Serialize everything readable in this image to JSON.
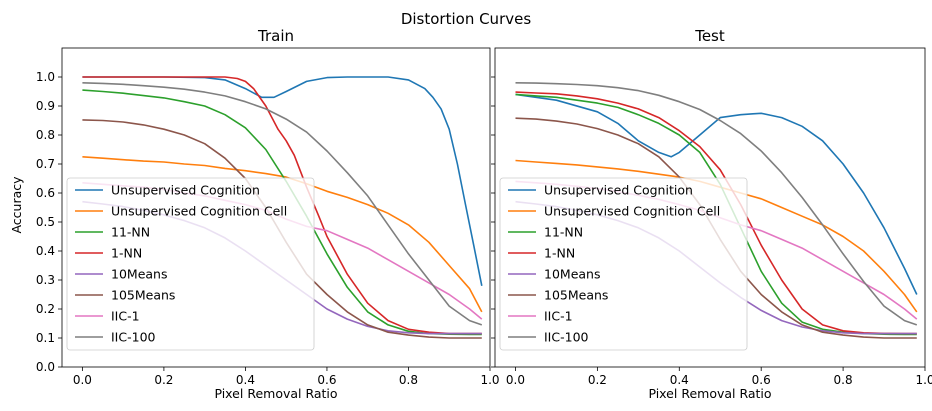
{
  "figure_title": "Distortion Curves",
  "shared": {
    "ylabel": "Accuracy",
    "xlabel": "Pixel Removal Ratio",
    "xlim": [
      -0.05,
      1.0
    ],
    "ylim": [
      0.0,
      1.1
    ],
    "xticks": [
      0.0,
      0.2,
      0.4,
      0.6,
      0.8,
      1.0
    ],
    "yticks": [
      0.0,
      0.1,
      0.2,
      0.3,
      0.4,
      0.5,
      0.6,
      0.7,
      0.8,
      0.9,
      1.0
    ]
  },
  "legend": {
    "placement": "lower-left",
    "entries": [
      {
        "name": "Unsupervised Cognition",
        "color": "#1f77b4"
      },
      {
        "name": "Unsupervised Cognition Cell",
        "color": "#ff7f0e"
      },
      {
        "name": "11-NN",
        "color": "#2ca02c"
      },
      {
        "name": "1-NN",
        "color": "#d62728"
      },
      {
        "name": "10Means",
        "color": "#9467bd"
      },
      {
        "name": "105Means",
        "color": "#8c564b"
      },
      {
        "name": "IIC-1",
        "color": "#e377c2"
      },
      {
        "name": "IIC-100",
        "color": "#7f7f7f"
      }
    ]
  },
  "chart_data": [
    {
      "type": "line",
      "title": "Train",
      "xlabel": "Pixel Removal Ratio",
      "ylabel": "Accuracy",
      "series": [
        {
          "name": "Unsupervised Cognition",
          "color": "#1f77b4",
          "x": [
            0.0,
            0.2,
            0.3,
            0.35,
            0.4,
            0.44,
            0.47,
            0.5,
            0.55,
            0.6,
            0.65,
            0.7,
            0.75,
            0.8,
            0.84,
            0.86,
            0.88,
            0.9,
            0.92,
            0.94,
            0.96,
            0.98
          ],
          "y": [
            1.0,
            1.0,
            0.998,
            0.99,
            0.96,
            0.93,
            0.93,
            0.95,
            0.985,
            0.998,
            1.0,
            1.0,
            1.0,
            0.99,
            0.96,
            0.93,
            0.89,
            0.82,
            0.7,
            0.56,
            0.42,
            0.28
          ]
        },
        {
          "name": "Unsupervised Cognition Cell",
          "color": "#ff7f0e",
          "x": [
            0.0,
            0.05,
            0.1,
            0.15,
            0.2,
            0.25,
            0.3,
            0.35,
            0.4,
            0.45,
            0.5,
            0.55,
            0.6,
            0.65,
            0.7,
            0.75,
            0.8,
            0.85,
            0.9,
            0.95,
            0.98
          ],
          "y": [
            0.725,
            0.72,
            0.715,
            0.71,
            0.707,
            0.7,
            0.695,
            0.685,
            0.677,
            0.667,
            0.655,
            0.632,
            0.606,
            0.585,
            0.56,
            0.53,
            0.49,
            0.43,
            0.35,
            0.27,
            0.19
          ]
        },
        {
          "name": "11-NN",
          "color": "#2ca02c",
          "x": [
            0.0,
            0.05,
            0.1,
            0.15,
            0.2,
            0.25,
            0.3,
            0.35,
            0.4,
            0.45,
            0.5,
            0.55,
            0.6,
            0.65,
            0.7,
            0.75,
            0.8,
            0.85,
            0.9,
            0.95,
            0.98
          ],
          "y": [
            0.955,
            0.95,
            0.944,
            0.936,
            0.928,
            0.915,
            0.9,
            0.87,
            0.825,
            0.75,
            0.64,
            0.52,
            0.39,
            0.275,
            0.19,
            0.145,
            0.123,
            0.115,
            0.113,
            0.112,
            0.112
          ]
        },
        {
          "name": "1-NN",
          "color": "#d62728",
          "x": [
            0.0,
            0.1,
            0.2,
            0.3,
            0.35,
            0.38,
            0.4,
            0.42,
            0.45,
            0.48,
            0.5,
            0.52,
            0.55,
            0.58,
            0.6,
            0.65,
            0.7,
            0.75,
            0.8,
            0.85,
            0.9,
            0.95,
            0.98
          ],
          "y": [
            1.0,
            1.0,
            1.0,
            1.0,
            1.0,
            0.995,
            0.985,
            0.96,
            0.9,
            0.82,
            0.78,
            0.73,
            0.62,
            0.52,
            0.45,
            0.32,
            0.22,
            0.16,
            0.13,
            0.12,
            0.115,
            0.115,
            0.115
          ]
        },
        {
          "name": "10Means",
          "color": "#9467bd",
          "x": [
            0.0,
            0.05,
            0.1,
            0.15,
            0.2,
            0.25,
            0.3,
            0.35,
            0.4,
            0.45,
            0.5,
            0.55,
            0.6,
            0.65,
            0.7,
            0.75,
            0.8,
            0.85,
            0.9,
            0.95,
            0.98
          ],
          "y": [
            0.57,
            0.562,
            0.553,
            0.54,
            0.525,
            0.505,
            0.48,
            0.445,
            0.4,
            0.35,
            0.3,
            0.25,
            0.2,
            0.165,
            0.14,
            0.125,
            0.118,
            0.115,
            0.115,
            0.115,
            0.115
          ]
        },
        {
          "name": "105Means",
          "color": "#8c564b",
          "x": [
            0.0,
            0.05,
            0.1,
            0.15,
            0.2,
            0.25,
            0.3,
            0.35,
            0.4,
            0.45,
            0.5,
            0.55,
            0.6,
            0.65,
            0.7,
            0.75,
            0.8,
            0.85,
            0.9,
            0.95,
            0.98
          ],
          "y": [
            0.852,
            0.85,
            0.845,
            0.835,
            0.82,
            0.8,
            0.77,
            0.72,
            0.65,
            0.55,
            0.43,
            0.32,
            0.25,
            0.19,
            0.145,
            0.12,
            0.11,
            0.103,
            0.1,
            0.1,
            0.1
          ]
        },
        {
          "name": "IIC-1",
          "color": "#e377c2",
          "x": [
            0.0,
            0.05,
            0.1,
            0.15,
            0.2,
            0.25,
            0.3,
            0.35,
            0.4,
            0.45,
            0.5,
            0.55,
            0.6,
            0.65,
            0.7,
            0.75,
            0.8,
            0.85,
            0.9,
            0.95,
            0.98
          ],
          "y": [
            0.635,
            0.63,
            0.625,
            0.62,
            0.612,
            0.6,
            0.59,
            0.575,
            0.56,
            0.54,
            0.51,
            0.485,
            0.47,
            0.44,
            0.41,
            0.37,
            0.33,
            0.29,
            0.25,
            0.2,
            0.165
          ]
        },
        {
          "name": "IIC-100",
          "color": "#7f7f7f",
          "x": [
            0.0,
            0.05,
            0.1,
            0.15,
            0.2,
            0.25,
            0.3,
            0.35,
            0.4,
            0.45,
            0.5,
            0.55,
            0.6,
            0.65,
            0.7,
            0.75,
            0.8,
            0.85,
            0.9,
            0.95,
            0.98
          ],
          "y": [
            0.98,
            0.978,
            0.975,
            0.97,
            0.965,
            0.958,
            0.948,
            0.935,
            0.915,
            0.89,
            0.855,
            0.81,
            0.745,
            0.67,
            0.59,
            0.49,
            0.39,
            0.3,
            0.21,
            0.16,
            0.145
          ]
        }
      ]
    },
    {
      "type": "line",
      "title": "Test",
      "xlabel": "Pixel Removal Ratio",
      "ylabel": "",
      "series": [
        {
          "name": "Unsupervised Cognition",
          "color": "#1f77b4",
          "x": [
            0.0,
            0.1,
            0.2,
            0.25,
            0.3,
            0.35,
            0.38,
            0.4,
            0.45,
            0.5,
            0.55,
            0.58,
            0.6,
            0.65,
            0.7,
            0.75,
            0.8,
            0.85,
            0.9,
            0.95,
            0.98
          ],
          "y": [
            0.94,
            0.92,
            0.88,
            0.84,
            0.78,
            0.74,
            0.725,
            0.74,
            0.8,
            0.86,
            0.87,
            0.873,
            0.875,
            0.86,
            0.83,
            0.78,
            0.7,
            0.6,
            0.48,
            0.34,
            0.25
          ]
        },
        {
          "name": "Unsupervised Cognition Cell",
          "color": "#ff7f0e",
          "x": [
            0.0,
            0.05,
            0.1,
            0.15,
            0.2,
            0.25,
            0.3,
            0.35,
            0.4,
            0.45,
            0.5,
            0.55,
            0.6,
            0.65,
            0.7,
            0.75,
            0.8,
            0.85,
            0.9,
            0.95,
            0.98
          ],
          "y": [
            0.712,
            0.707,
            0.702,
            0.697,
            0.69,
            0.683,
            0.675,
            0.665,
            0.655,
            0.64,
            0.62,
            0.6,
            0.58,
            0.55,
            0.52,
            0.49,
            0.45,
            0.4,
            0.33,
            0.25,
            0.19
          ]
        },
        {
          "name": "11-NN",
          "color": "#2ca02c",
          "x": [
            0.0,
            0.05,
            0.1,
            0.15,
            0.2,
            0.25,
            0.3,
            0.35,
            0.4,
            0.45,
            0.5,
            0.55,
            0.6,
            0.65,
            0.7,
            0.75,
            0.8,
            0.85,
            0.9,
            0.95,
            0.98
          ],
          "y": [
            0.94,
            0.935,
            0.93,
            0.92,
            0.91,
            0.895,
            0.87,
            0.84,
            0.8,
            0.74,
            0.63,
            0.48,
            0.33,
            0.22,
            0.155,
            0.13,
            0.12,
            0.115,
            0.113,
            0.112,
            0.112
          ]
        },
        {
          "name": "1-NN",
          "color": "#d62728",
          "x": [
            0.0,
            0.05,
            0.1,
            0.15,
            0.2,
            0.25,
            0.3,
            0.35,
            0.4,
            0.45,
            0.5,
            0.55,
            0.6,
            0.65,
            0.7,
            0.75,
            0.8,
            0.85,
            0.9,
            0.95,
            0.98
          ],
          "y": [
            0.948,
            0.945,
            0.942,
            0.935,
            0.925,
            0.91,
            0.89,
            0.86,
            0.815,
            0.76,
            0.68,
            0.56,
            0.42,
            0.3,
            0.2,
            0.145,
            0.125,
            0.118,
            0.116,
            0.115,
            0.115
          ]
        },
        {
          "name": "10Means",
          "color": "#9467bd",
          "x": [
            0.0,
            0.05,
            0.1,
            0.15,
            0.2,
            0.25,
            0.3,
            0.35,
            0.4,
            0.45,
            0.5,
            0.55,
            0.6,
            0.65,
            0.7,
            0.75,
            0.8,
            0.85,
            0.9,
            0.95,
            0.98
          ],
          "y": [
            0.57,
            0.562,
            0.553,
            0.54,
            0.525,
            0.505,
            0.48,
            0.445,
            0.4,
            0.345,
            0.29,
            0.24,
            0.195,
            0.16,
            0.138,
            0.125,
            0.118,
            0.115,
            0.115,
            0.115,
            0.115
          ]
        },
        {
          "name": "105Means",
          "color": "#8c564b",
          "x": [
            0.0,
            0.05,
            0.1,
            0.15,
            0.2,
            0.25,
            0.3,
            0.35,
            0.4,
            0.45,
            0.5,
            0.55,
            0.6,
            0.65,
            0.7,
            0.75,
            0.8,
            0.85,
            0.9,
            0.95,
            0.98
          ],
          "y": [
            0.858,
            0.855,
            0.848,
            0.838,
            0.822,
            0.8,
            0.77,
            0.725,
            0.655,
            0.56,
            0.44,
            0.33,
            0.25,
            0.19,
            0.145,
            0.12,
            0.11,
            0.103,
            0.1,
            0.1,
            0.1
          ]
        },
        {
          "name": "IIC-1",
          "color": "#e377c2",
          "x": [
            0.0,
            0.05,
            0.1,
            0.15,
            0.2,
            0.25,
            0.3,
            0.35,
            0.4,
            0.45,
            0.5,
            0.55,
            0.6,
            0.65,
            0.7,
            0.75,
            0.8,
            0.85,
            0.9,
            0.95,
            0.98
          ],
          "y": [
            0.64,
            0.635,
            0.63,
            0.623,
            0.615,
            0.605,
            0.592,
            0.578,
            0.56,
            0.54,
            0.515,
            0.49,
            0.47,
            0.44,
            0.41,
            0.37,
            0.33,
            0.29,
            0.25,
            0.2,
            0.165
          ]
        },
        {
          "name": "IIC-100",
          "color": "#7f7f7f",
          "x": [
            0.0,
            0.05,
            0.1,
            0.15,
            0.2,
            0.25,
            0.3,
            0.35,
            0.4,
            0.45,
            0.5,
            0.55,
            0.6,
            0.65,
            0.7,
            0.75,
            0.8,
            0.85,
            0.9,
            0.95,
            0.98
          ],
          "y": [
            0.98,
            0.979,
            0.977,
            0.974,
            0.97,
            0.963,
            0.953,
            0.937,
            0.915,
            0.888,
            0.85,
            0.805,
            0.745,
            0.67,
            0.585,
            0.49,
            0.39,
            0.295,
            0.21,
            0.16,
            0.145
          ]
        }
      ]
    }
  ]
}
